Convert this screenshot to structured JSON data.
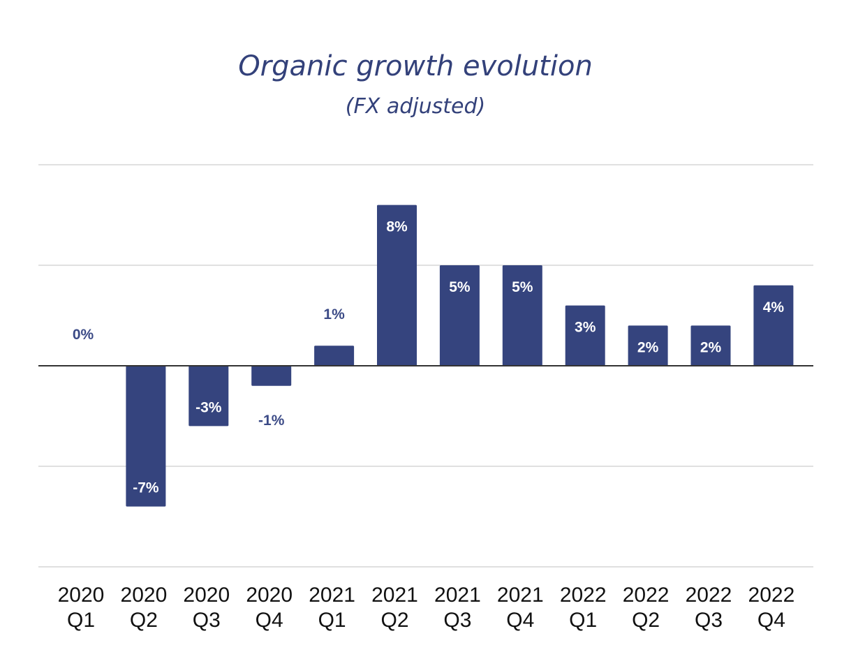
{
  "chart_data": {
    "type": "bar",
    "title": "Organic growth evolution",
    "subtitle": "(FX adjusted)",
    "xlabel": "",
    "ylabel": "",
    "categories": [
      [
        "2020",
        "Q1"
      ],
      [
        "2020",
        "Q2"
      ],
      [
        "2020",
        "Q3"
      ],
      [
        "2020",
        "Q4"
      ],
      [
        "2021",
        "Q1"
      ],
      [
        "2021",
        "Q2"
      ],
      [
        "2021",
        "Q3"
      ],
      [
        "2021",
        "Q4"
      ],
      [
        "2022",
        "Q1"
      ],
      [
        "2022",
        "Q2"
      ],
      [
        "2022",
        "Q3"
      ],
      [
        "2022",
        "Q4"
      ]
    ],
    "values": [
      0,
      -7,
      -3,
      -1,
      1,
      8,
      5,
      5,
      3,
      2,
      2,
      4
    ],
    "data_labels": [
      "0%",
      "-7%",
      "-3%",
      "-1%",
      "1%",
      "8%",
      "5%",
      "5%",
      "3%",
      "2%",
      "2%",
      "4%"
    ],
    "ylim": [
      -10,
      10
    ],
    "gridlines": [
      -10,
      -5,
      0,
      5,
      10
    ],
    "grid": true,
    "legend": "none",
    "colors": {
      "bar": "#35447e",
      "title": "#33417a",
      "outside_label": "#3b4a86",
      "inside_label": "#ffffff",
      "grid": "#d6d6d6",
      "zero_line": "#333333",
      "tick_label": "#111111"
    }
  }
}
